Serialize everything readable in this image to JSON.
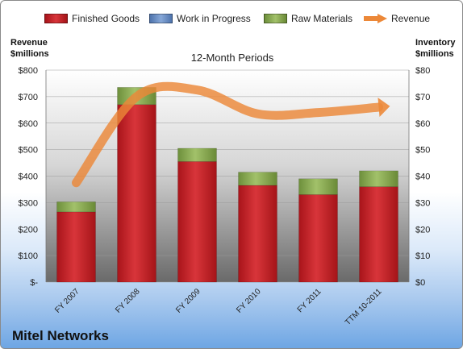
{
  "legend": [
    {
      "label": "Finished Goods",
      "color": "#d3262b"
    },
    {
      "label": "Work in Progress",
      "color": "#6f94c9"
    },
    {
      "label": "Raw Materials",
      "color": "#8fb05a"
    },
    {
      "label": "Revenue",
      "color": "#ec8838"
    }
  ],
  "left_axis_title": {
    "line1": "Revenue",
    "line2": "$millions"
  },
  "right_axis_title": {
    "line1": "Inventory",
    "line2": "$millions"
  },
  "subtitle": "12-Month Periods",
  "company": "Mitel Networks",
  "chart_data": {
    "type": "bar",
    "stacked": true,
    "categories": [
      "FY 2007",
      "FY 2008",
      "FY 2009",
      "FY 2010",
      "FY 2011",
      "TTM 10-2011"
    ],
    "series": [
      {
        "name": "Finished Goods",
        "axis": "right",
        "values": [
          26.5,
          67,
          45.5,
          36.5,
          33,
          36
        ]
      },
      {
        "name": "Work in Progress",
        "axis": "right",
        "values": [
          0,
          0,
          0,
          0,
          0,
          0
        ]
      },
      {
        "name": "Raw Materials",
        "axis": "right",
        "values": [
          3.8,
          6.5,
          5,
          5,
          6,
          6
        ]
      },
      {
        "name": "Revenue",
        "axis": "left",
        "type": "line",
        "values": [
          375,
          700,
          725,
          635,
          640,
          660
        ]
      }
    ],
    "left_axis": {
      "min": 0,
      "max": 800,
      "ticks": [
        "$-",
        "$100",
        "$200",
        "$300",
        "$400",
        "$500",
        "$600",
        "$700",
        "$800"
      ]
    },
    "right_axis": {
      "min": 0,
      "max": 80,
      "ticks": [
        "$0",
        "$10",
        "$20",
        "$30",
        "$40",
        "$50",
        "$60",
        "$70",
        "$80"
      ]
    },
    "grid": true
  }
}
